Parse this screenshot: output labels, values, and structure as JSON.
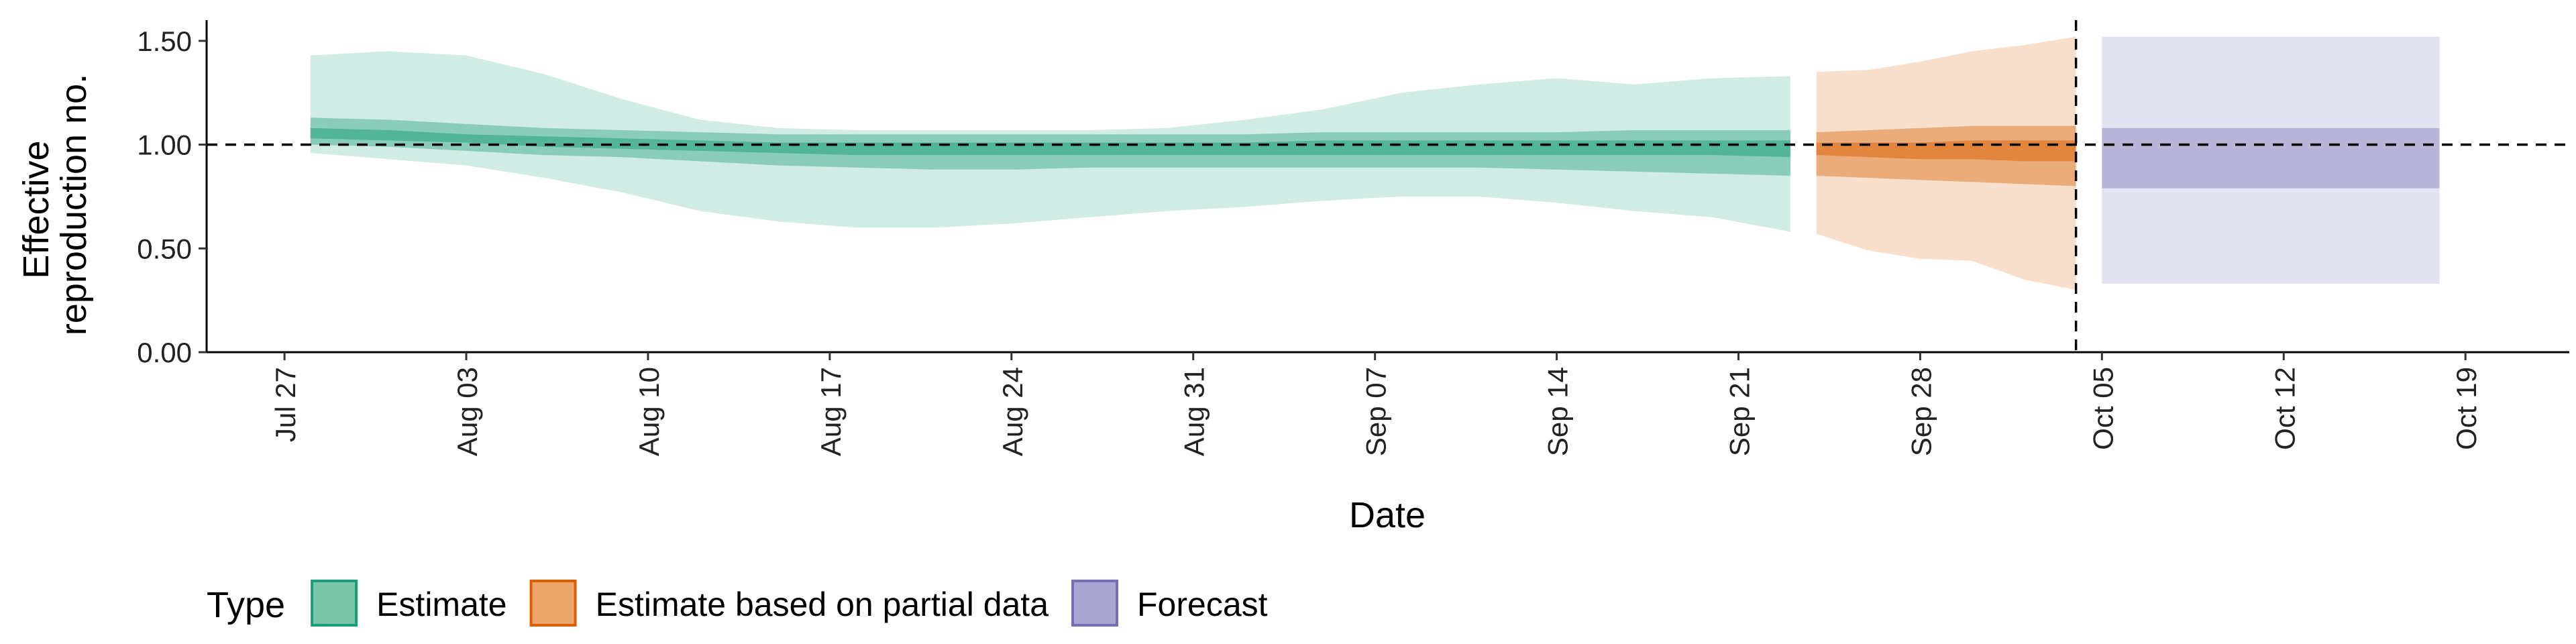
{
  "chart_data": {
    "type": "area",
    "xlabel": "Date",
    "ylabel_lines": [
      "Effective",
      "reproduction no."
    ],
    "ylim": [
      0,
      1.6
    ],
    "yticks": [
      0.0,
      0.5,
      1.0,
      1.5
    ],
    "ytick_labels": [
      "0.00",
      "0.50",
      "1.00",
      "1.50"
    ],
    "xlim": [
      "2020-07-24",
      "2020-10-23"
    ],
    "xticks": [
      "2020-07-27",
      "2020-08-03",
      "2020-08-10",
      "2020-08-17",
      "2020-08-24",
      "2020-08-31",
      "2020-09-07",
      "2020-09-14",
      "2020-09-21",
      "2020-09-28",
      "2020-10-05",
      "2020-10-12",
      "2020-10-19"
    ],
    "xtick_labels": [
      "Jul 27",
      "Aug 03",
      "Aug 10",
      "Aug 17",
      "Aug 24",
      "Aug 31",
      "Sep 07",
      "Sep 14",
      "Sep 21",
      "Sep 28",
      "Oct 05",
      "Oct 12",
      "Oct 19"
    ],
    "reference_line_y": 1.0,
    "vertical_line_date": "2020-10-04",
    "legend": {
      "title": "Type",
      "position": "bottom",
      "entries": [
        {
          "label": "Estimate",
          "fill": "#7bc6ab",
          "stroke": "#1b9e77"
        },
        {
          "label": "Estimate based on partial data",
          "fill": "#eaa56a",
          "stroke": "#d95f02"
        },
        {
          "label": "Forecast",
          "fill": "#a9a6d3",
          "stroke": "#7570b3"
        }
      ]
    },
    "series": [
      {
        "type_label": "Estimate",
        "color": "#1b9e77",
        "x": [
          "2020-07-28",
          "2020-07-31",
          "2020-08-03",
          "2020-08-06",
          "2020-08-09",
          "2020-08-12",
          "2020-08-15",
          "2020-08-18",
          "2020-08-21",
          "2020-08-24",
          "2020-08-27",
          "2020-08-30",
          "2020-09-02",
          "2020-09-05",
          "2020-09-08",
          "2020-09-11",
          "2020-09-14",
          "2020-09-17",
          "2020-09-20",
          "2020-09-23"
        ],
        "outer_upper": [
          1.43,
          1.45,
          1.43,
          1.34,
          1.22,
          1.12,
          1.08,
          1.07,
          1.07,
          1.07,
          1.07,
          1.08,
          1.12,
          1.17,
          1.25,
          1.29,
          1.32,
          1.29,
          1.32,
          1.33
        ],
        "outer_lower": [
          0.96,
          0.93,
          0.9,
          0.84,
          0.77,
          0.68,
          0.63,
          0.6,
          0.6,
          0.62,
          0.65,
          0.68,
          0.7,
          0.73,
          0.75,
          0.75,
          0.72,
          0.68,
          0.65,
          0.58
        ],
        "mid_upper": [
          1.13,
          1.12,
          1.1,
          1.08,
          1.07,
          1.06,
          1.05,
          1.05,
          1.05,
          1.05,
          1.05,
          1.05,
          1.05,
          1.06,
          1.06,
          1.06,
          1.06,
          1.07,
          1.07,
          1.07
        ],
        "mid_lower": [
          1.0,
          0.99,
          0.97,
          0.95,
          0.94,
          0.92,
          0.9,
          0.89,
          0.88,
          0.88,
          0.89,
          0.89,
          0.89,
          0.89,
          0.89,
          0.89,
          0.88,
          0.87,
          0.86,
          0.85
        ],
        "inner_upper": [
          1.08,
          1.07,
          1.05,
          1.04,
          1.03,
          1.02,
          1.01,
          1.01,
          1.01,
          1.01,
          1.01,
          1.01,
          1.01,
          1.02,
          1.02,
          1.02,
          1.02,
          1.02,
          1.02,
          1.02
        ],
        "inner_lower": [
          1.03,
          1.02,
          1.01,
          0.99,
          0.98,
          0.97,
          0.96,
          0.95,
          0.95,
          0.95,
          0.95,
          0.95,
          0.95,
          0.95,
          0.95,
          0.95,
          0.95,
          0.95,
          0.95,
          0.94
        ]
      },
      {
        "type_label": "Estimate based on partial data",
        "color": "#d95f02",
        "x": [
          "2020-09-24",
          "2020-09-26",
          "2020-09-28",
          "2020-09-30",
          "2020-10-02",
          "2020-10-04"
        ],
        "outer_upper": [
          1.35,
          1.36,
          1.4,
          1.45,
          1.48,
          1.52
        ],
        "outer_lower": [
          0.57,
          0.49,
          0.45,
          0.44,
          0.35,
          0.3
        ],
        "mid_upper": [
          1.06,
          1.07,
          1.08,
          1.09,
          1.09,
          1.09
        ],
        "mid_lower": [
          0.85,
          0.84,
          0.83,
          0.82,
          0.81,
          0.8
        ],
        "inner_upper": [
          1.01,
          1.01,
          1.01,
          1.02,
          1.02,
          1.02
        ],
        "inner_lower": [
          0.95,
          0.94,
          0.93,
          0.93,
          0.92,
          0.92
        ]
      },
      {
        "type_label": "Forecast",
        "color": "#7570b3",
        "x": [
          "2020-10-05",
          "2020-10-18"
        ],
        "outer_upper": [
          1.52,
          1.52
        ],
        "outer_lower": [
          0.33,
          0.33
        ],
        "mid_upper": [
          1.08,
          1.08
        ],
        "mid_lower": [
          0.79,
          0.79
        ],
        "inner_upper": [
          1.0,
          1.0
        ],
        "inner_lower": [
          1.0,
          1.0
        ]
      }
    ]
  }
}
